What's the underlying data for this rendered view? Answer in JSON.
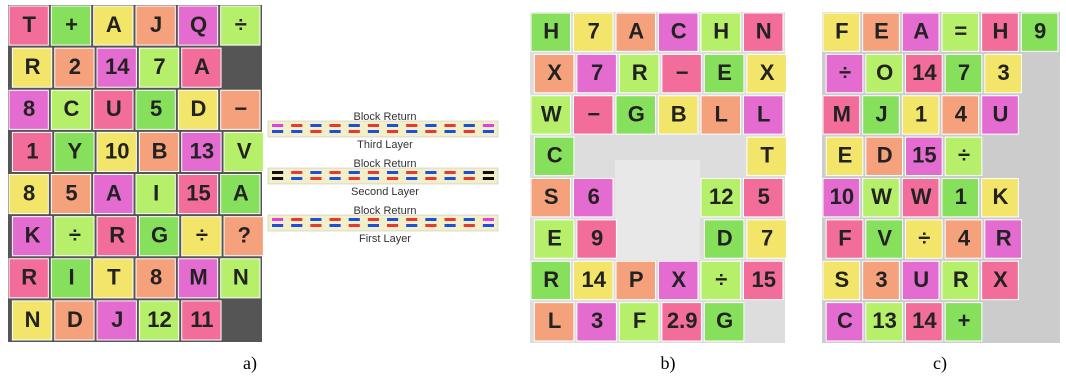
{
  "panels": [
    {
      "caption": "a)",
      "rows": [
        [
          "T",
          "+",
          "A",
          "J",
          "Q",
          "÷"
        ],
        [
          "R",
          "2",
          "14",
          "7",
          "A"
        ],
        [
          "8",
          "C",
          "U",
          "5",
          "D",
          "−"
        ],
        [
          "1",
          "Y",
          "10",
          "B",
          "13",
          "V"
        ],
        [
          "8",
          "5",
          "A",
          "I",
          "15",
          "A"
        ],
        [
          "K",
          "÷",
          "R",
          "G",
          "÷",
          "?"
        ],
        [
          "R",
          "I",
          "T",
          "8",
          "M",
          "N"
        ],
        [
          "N",
          "D",
          "J",
          "12",
          "11"
        ]
      ]
    },
    {
      "caption": "b)",
      "rows": [
        [
          "H",
          "7",
          "A",
          "C",
          "H",
          "N"
        ],
        [
          "X",
          "7",
          "R",
          "−",
          "E",
          "X"
        ],
        [
          "W",
          "−",
          "G",
          "B",
          "L",
          "L"
        ],
        [
          "C",
          "T"
        ],
        [
          "S",
          "6",
          "12",
          "5"
        ],
        [
          "E",
          "9",
          "D",
          "7"
        ],
        [
          "R",
          "14",
          "P",
          "X",
          "÷",
          "15"
        ],
        [
          "L",
          "3",
          "F",
          "2.9",
          "G"
        ]
      ]
    },
    {
      "caption": "c)",
      "rows": [
        [
          "F",
          "E",
          "A",
          "=",
          "H",
          "9"
        ],
        [
          "÷",
          "O",
          "14",
          "7",
          "3"
        ],
        [
          "M",
          "J",
          "1",
          "4",
          "U"
        ],
        [
          "E",
          "D",
          "15",
          "÷"
        ],
        [
          "10",
          "W",
          "W",
          "1",
          "K"
        ],
        [
          "F",
          "V",
          "÷",
          "4",
          "R"
        ],
        [
          "S",
          "3",
          "U",
          "R",
          "X"
        ],
        [
          "C",
          "13",
          "14",
          "+"
        ]
      ]
    }
  ],
  "diagram": {
    "layers": [
      {
        "header": "Block Return",
        "label": "Third Layer"
      },
      {
        "header": "Block Return",
        "label": "Second Layer"
      },
      {
        "header": "Block Return",
        "label": "First Layer"
      }
    ]
  }
}
